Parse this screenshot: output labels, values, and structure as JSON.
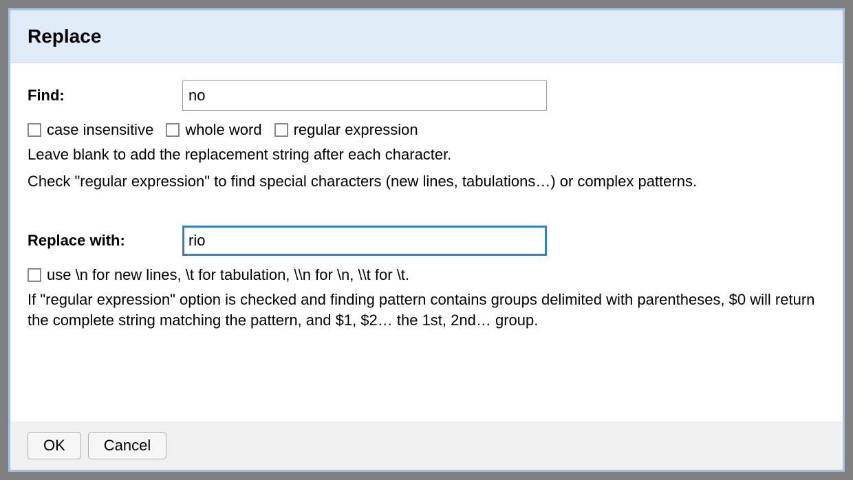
{
  "dialog": {
    "title": "Replace"
  },
  "find": {
    "label": "Find:",
    "value": "no",
    "options": {
      "case_insensitive": {
        "label": "case insensitive",
        "checked": false
      },
      "whole_word": {
        "label": "whole word",
        "checked": false
      },
      "regular_expression": {
        "label": "regular expression",
        "checked": false
      }
    },
    "help1": "Leave blank to add the replacement string after each character.",
    "help2": "Check \"regular expression\" to find special characters (new lines, tabulations…) or complex patterns."
  },
  "replace": {
    "label": "Replace with:",
    "value": "rio",
    "options": {
      "escape": {
        "label": "use \\n for new lines, \\t for tabulation, \\\\n for \\n, \\\\t for \\t.",
        "checked": false
      }
    },
    "help": "If \"regular expression\" option is checked and finding pattern contains groups delimited with parentheses, $0 will return the complete string matching the pattern, and $1, $2… the 1st, 2nd… group."
  },
  "buttons": {
    "ok": "OK",
    "cancel": "Cancel"
  },
  "style": {
    "page_background": "#808080",
    "dialog_border": "#a3c2e6",
    "header_background": "#e1ecf9",
    "body_background": "#ffffff",
    "footer_background": "#f0f0f0",
    "focus_border": "#2f7fd9",
    "input_border": "#9e9e9e",
    "checkbox_border": "#888888",
    "button_background": "#f6f6f6",
    "button_border": "#adadad",
    "text_color": "#000000",
    "title_fontsize": 28,
    "body_fontsize": 22
  }
}
